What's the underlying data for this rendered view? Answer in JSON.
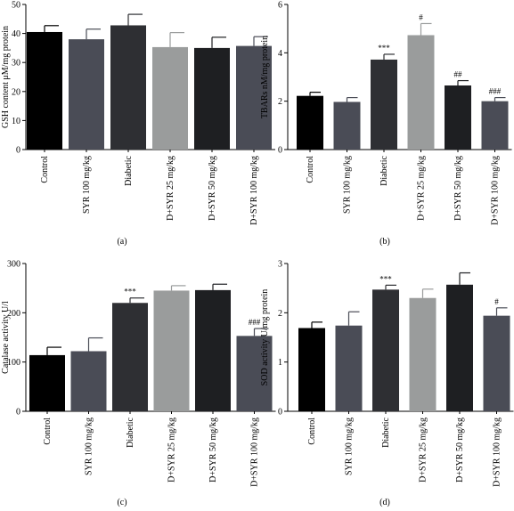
{
  "colors": {
    "bars": [
      "#000000",
      "#4a4c56",
      "#2e2f33",
      "#9a9c9c",
      "#1e1f22",
      "#4a4c56"
    ],
    "axis": "#000000"
  },
  "panels": [
    {
      "panel_label": "(a)",
      "chart_data": {
        "type": "bar",
        "categories": [
          "Control",
          "SYR 100 mg/kg",
          "Diabetic",
          "D+SYR 25 mg/kg",
          "D+SYR 50 mg/kg",
          "D+SYR 100 mg/kg"
        ],
        "values": [
          40.5,
          38.0,
          42.8,
          35.3,
          35.0,
          35.7
        ],
        "errors": [
          2.2,
          3.5,
          3.8,
          5.0,
          3.7,
          3.2
        ],
        "annotations": [
          "",
          "",
          "",
          "",
          "",
          ""
        ],
        "ylabel": "GSH content μM/mg protein",
        "ylim": [
          0,
          50
        ],
        "yticks": [
          "0",
          "10",
          "20",
          "30",
          "40",
          "50"
        ],
        "grid": false
      }
    },
    {
      "panel_label": "(b)",
      "chart_data": {
        "type": "bar",
        "categories": [
          "Control",
          "SYR 100 mg/kg",
          "Diabetic",
          "D+SYR 25 mg/kg",
          "D+SYR 50 mg/kg",
          "D+SYR 100 mg/kg"
        ],
        "values": [
          2.22,
          1.97,
          3.72,
          4.73,
          2.65,
          2.0
        ],
        "errors": [
          0.15,
          0.18,
          0.22,
          0.48,
          0.2,
          0.15
        ],
        "annotations": [
          "",
          "",
          "***",
          "#",
          "##",
          "###"
        ],
        "ylabel": "TBARs nM/mg protein",
        "ylim": [
          0,
          6
        ],
        "yticks": [
          "0",
          "2",
          "4",
          "6"
        ],
        "grid": false
      }
    },
    {
      "panel_label": "(c)",
      "chart_data": {
        "type": "bar",
        "categories": [
          "Control",
          "SYR 100 mg/kg",
          "Diabetic",
          "D+SYR 25 mg/kg",
          "D+SYR 50 mg/kg",
          "D+SYR 100 mg/kg"
        ],
        "values": [
          114,
          122,
          220,
          245,
          246,
          153
        ],
        "errors": [
          16,
          27,
          10,
          10,
          12,
          15
        ],
        "annotations": [
          "",
          "",
          "***",
          "",
          "",
          "###"
        ],
        "ylabel": "Catalase activity U/l",
        "ylim": [
          0,
          300
        ],
        "yticks": [
          "0",
          "100",
          "200",
          "300"
        ],
        "grid": false
      }
    },
    {
      "panel_label": "(d)",
      "chart_data": {
        "type": "bar",
        "categories": [
          "Control",
          "SYR 100 mg/kg",
          "Diabetic",
          "D+SYR 25 mg/kg",
          "D+SYR 50 mg/kg",
          "D+SYR 100 mg/kg"
        ],
        "values": [
          1.69,
          1.74,
          2.47,
          2.3,
          2.57,
          1.94
        ],
        "errors": [
          0.12,
          0.28,
          0.09,
          0.18,
          0.24,
          0.16
        ],
        "annotations": [
          "",
          "",
          "***",
          "",
          "",
          "#"
        ],
        "ylabel": "SOD activity U/mg protein",
        "ylim": [
          0,
          3
        ],
        "yticks": [
          "0",
          "1",
          "2",
          "3"
        ],
        "grid": false
      }
    }
  ]
}
